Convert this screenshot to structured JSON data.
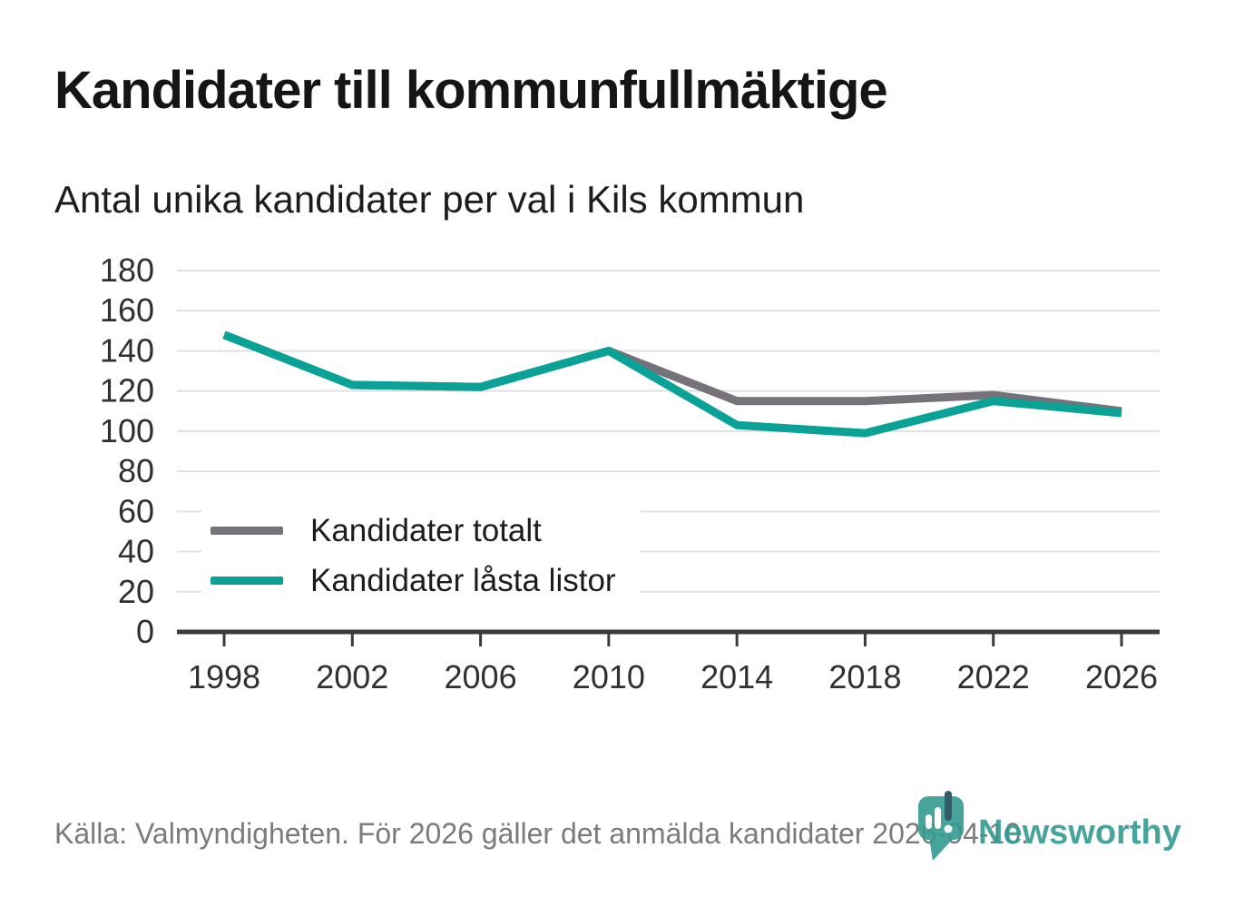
{
  "header": {
    "title": "Kandidater till kommunfullmäktige",
    "subtitle": "Antal unika kandidater per val i Kils kommun"
  },
  "chart_data": {
    "type": "line",
    "x": [
      "1998",
      "2002",
      "2006",
      "2010",
      "2014",
      "2018",
      "2022",
      "2026"
    ],
    "series": [
      {
        "name": "Kandidater totalt",
        "color": "#757279",
        "values": [
          148,
          123,
          122,
          140,
          115,
          115,
          118,
          110
        ]
      },
      {
        "name": "Kandidater låsta listor",
        "color": "#0AA296",
        "values": [
          148,
          123,
          122,
          140,
          103,
          99,
          115,
          109
        ]
      }
    ],
    "title": "Kandidater till kommunfullmäktige",
    "subtitle": "Antal unika kandidater per val i Kils kommun",
    "xlabel": "",
    "ylabel": "",
    "ylim": [
      0,
      180
    ],
    "yticks": [
      0,
      20,
      40,
      60,
      80,
      100,
      120,
      140,
      160,
      180
    ],
    "grid": "horizontal",
    "legend_position": "inside-bottom-left"
  },
  "footer": {
    "source": "Källa: Valmyndigheten. För 2026 gäller det anmälda kandidater 2026-04-10.",
    "brand": "Newsworthy"
  },
  "colors": {
    "accent_teal": "#0AA296",
    "series_gray": "#757279",
    "brand_teal": "#339B91",
    "logo_dark": "#1C4A57",
    "gridline": "#E0E0E0",
    "axis": "#3B3B3B",
    "tick_label": "#303030",
    "text_dark": "#151515",
    "text_gray": "#7B7B7B"
  },
  "icons": {
    "logo_icon": "newsworthy-pin-icon"
  }
}
